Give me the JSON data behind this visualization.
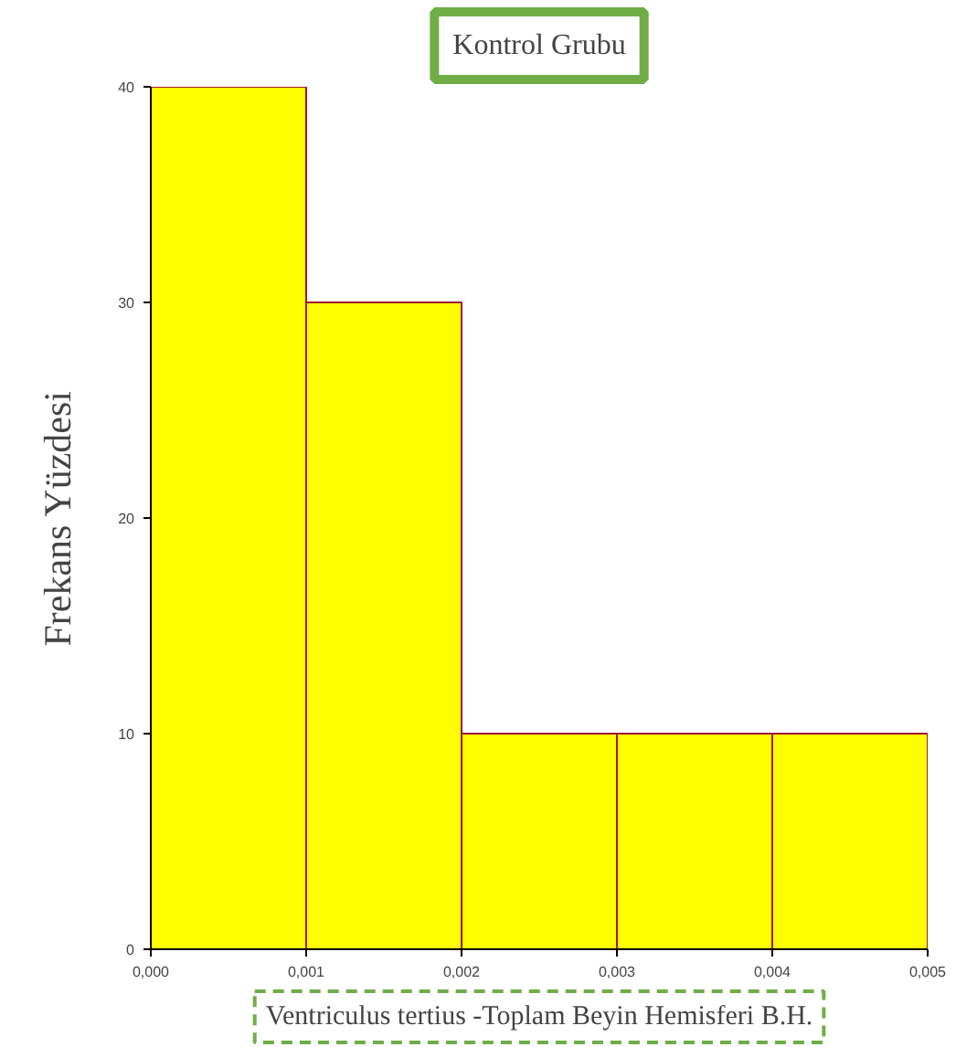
{
  "chart_data": {
    "type": "histogram",
    "title": "Kontrol Grubu",
    "xlabel": "Ventriculus tertius -Toplam Beyin Hemisferi B.H.",
    "ylabel": "Frekans Yüzdesi",
    "bins": [
      0,
      0.001,
      0.002,
      0.003,
      0.004,
      0.005
    ],
    "values": [
      40,
      30,
      10,
      10,
      10
    ],
    "color": "#ffff00",
    "xlim": [
      0,
      0.005
    ],
    "ylim": [
      0,
      40
    ],
    "xticks": [
      {
        "value": 0,
        "label": "0,000"
      },
      {
        "value": 0.001,
        "label": "0,001"
      },
      {
        "value": 0.002,
        "label": "0,002"
      },
      {
        "value": 0.003,
        "label": "0,003"
      },
      {
        "value": 0.004,
        "label": "0,004"
      },
      {
        "value": 0.005,
        "label": "0,005"
      }
    ],
    "yticks": [
      0,
      10,
      20,
      30,
      40
    ],
    "grid": false,
    "legend": false
  }
}
